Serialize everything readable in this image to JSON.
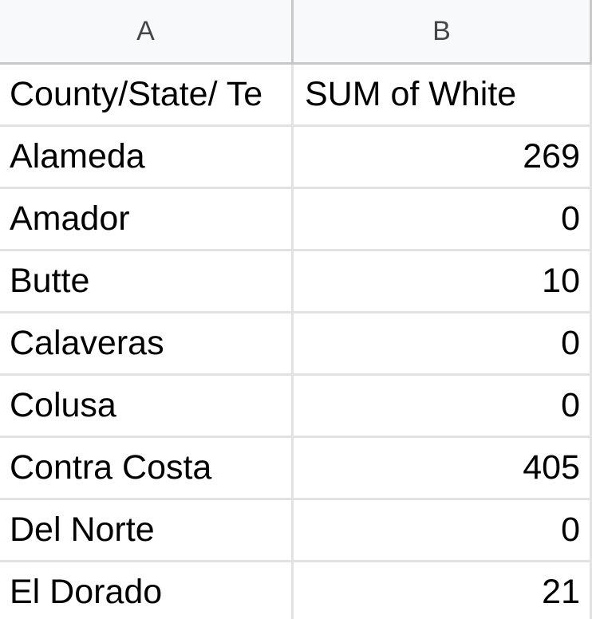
{
  "columns": {
    "a": "A",
    "b": "B"
  },
  "header_row": {
    "a": "County/State/ Te",
    "b": "SUM of White"
  },
  "rows": [
    {
      "county": "Alameda",
      "value": "269"
    },
    {
      "county": "Amador",
      "value": "0"
    },
    {
      "county": "Butte",
      "value": "10"
    },
    {
      "county": "Calaveras",
      "value": "0"
    },
    {
      "county": "Colusa",
      "value": "0"
    },
    {
      "county": "Contra Costa",
      "value": "405"
    },
    {
      "county": "Del Norte",
      "value": "0"
    },
    {
      "county": "El Dorado",
      "value": "21"
    }
  ]
}
